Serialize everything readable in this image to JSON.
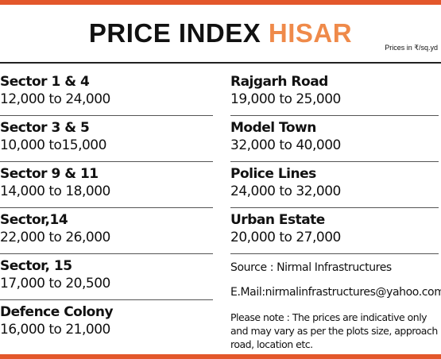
{
  "header": {
    "title_main": "PRICE INDEX",
    "title_accent": "HISAR",
    "units": "Prices in ₹/sq.yd"
  },
  "left_column": [
    {
      "name": "Sector 1 & 4",
      "range": "12,000 to 24,000"
    },
    {
      "name": "Sector 3  &  5",
      "range": "10,000 to15,000"
    },
    {
      "name": "Sector 9 & 11",
      "range": "14,000 to 18,000"
    },
    {
      "name": "Sector,14",
      "range": "22,000 to 26,000"
    },
    {
      "name": "Sector, 15",
      "range": "17,000 to 20,500"
    },
    {
      "name": "Defence  Colony",
      "range": "16,000 to 21,000"
    }
  ],
  "right_column": [
    {
      "name": "Rajgarh  Road",
      "range": "19,000 to 25,000"
    },
    {
      "name": "Model Town",
      "range": "32,000 to 40,000"
    },
    {
      "name": "Police Lines",
      "range": "24,000 to 32,000"
    },
    {
      "name": "Urban Estate",
      "range": "20,000 to 27,000"
    }
  ],
  "footer": {
    "source": "Source : Nirmal Infrastructures",
    "email": "E.Mail:nirmalinfrastructures@yahoo.com",
    "note": "Please note : The prices are indicative only and may vary as per the plots size, approach road, location etc."
  },
  "colors": {
    "accent": "#ef8a4a",
    "rule": "#e3572b",
    "text": "#111111"
  }
}
